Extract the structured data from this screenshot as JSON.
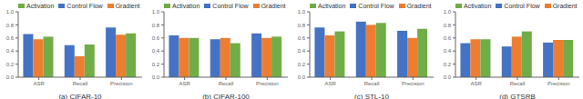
{
  "chart_data": [
    {
      "type": "bar",
      "xlabel": "(a) CIFAR-10",
      "categories": [
        "ASR",
        "Recall",
        "Precision"
      ],
      "series": [
        {
          "name": "Control Flow",
          "color": "#4472C4",
          "values": [
            0.66,
            0.49,
            0.76
          ]
        },
        {
          "name": "Gradient",
          "color": "#ED7D31",
          "values": [
            0.58,
            0.32,
            0.65
          ]
        },
        {
          "name": "Activation",
          "color": "#70AD47",
          "values": [
            0.62,
            0.5,
            0.67
          ]
        }
      ],
      "ylim": [
        0.0,
        1.0
      ],
      "yticks": [
        {
          "value": 0,
          "label": "0.0"
        },
        0.2,
        0.4,
        0.6,
        0.8,
        {
          "value": 1,
          "label": "1.0"
        }
      ],
      "legend": "top"
    },
    {
      "type": "bar",
      "xlabel": "(b) CIFAR-100",
      "categories": [
        "ASR",
        "Recall",
        "Precision"
      ],
      "series": [
        {
          "name": "Control Flow",
          "color": "#4472C4",
          "values": [
            0.64,
            0.58,
            0.67
          ]
        },
        {
          "name": "Gradient",
          "color": "#ED7D31",
          "values": [
            0.6,
            0.6,
            0.6
          ]
        },
        {
          "name": "Activation",
          "color": "#70AD47",
          "values": [
            0.6,
            0.52,
            0.62
          ]
        }
      ],
      "ylim": [
        0.0,
        1.0
      ],
      "yticks": [
        {
          "value": 0,
          "label": "0.0"
        },
        0.2,
        0.4,
        0.6,
        0.8,
        {
          "value": 1,
          "label": "1.0"
        }
      ],
      "legend": "top"
    },
    {
      "type": "bar",
      "xlabel": "(c) STL-10",
      "categories": [
        "ASR",
        "Recall",
        "Precision"
      ],
      "series": [
        {
          "name": "Control Flow",
          "color": "#4472C4",
          "values": [
            0.76,
            0.85,
            0.71
          ]
        },
        {
          "name": "Gradient",
          "color": "#ED7D31",
          "values": [
            0.64,
            0.8,
            0.6
          ]
        },
        {
          "name": "Activation",
          "color": "#70AD47",
          "values": [
            0.7,
            0.83,
            0.74
          ]
        }
      ],
      "ylim": [
        0.0,
        1.0
      ],
      "yticks": [
        {
          "value": 0,
          "label": "0.0"
        },
        0.2,
        0.4,
        0.6,
        0.8,
        {
          "value": 1,
          "label": "1.0"
        }
      ],
      "legend": "top"
    },
    {
      "type": "bar",
      "xlabel": "(d) GTSRB",
      "categories": [
        "ASR",
        "Recall",
        "Precision"
      ],
      "series": [
        {
          "name": "Control Flow",
          "color": "#4472C4",
          "values": [
            0.52,
            0.47,
            0.53
          ]
        },
        {
          "name": "Gradient",
          "color": "#ED7D31",
          "values": [
            0.58,
            0.62,
            0.57
          ]
        },
        {
          "name": "Activation",
          "color": "#70AD47",
          "values": [
            0.58,
            0.7,
            0.57
          ]
        }
      ],
      "ylim": [
        0.0,
        1.0
      ],
      "yticks": [
        {
          "value": 0,
          "label": "0.0"
        },
        0.2,
        0.4,
        0.6,
        0.8,
        {
          "value": 1,
          "label": "1.0"
        }
      ],
      "legend": "top"
    }
  ]
}
